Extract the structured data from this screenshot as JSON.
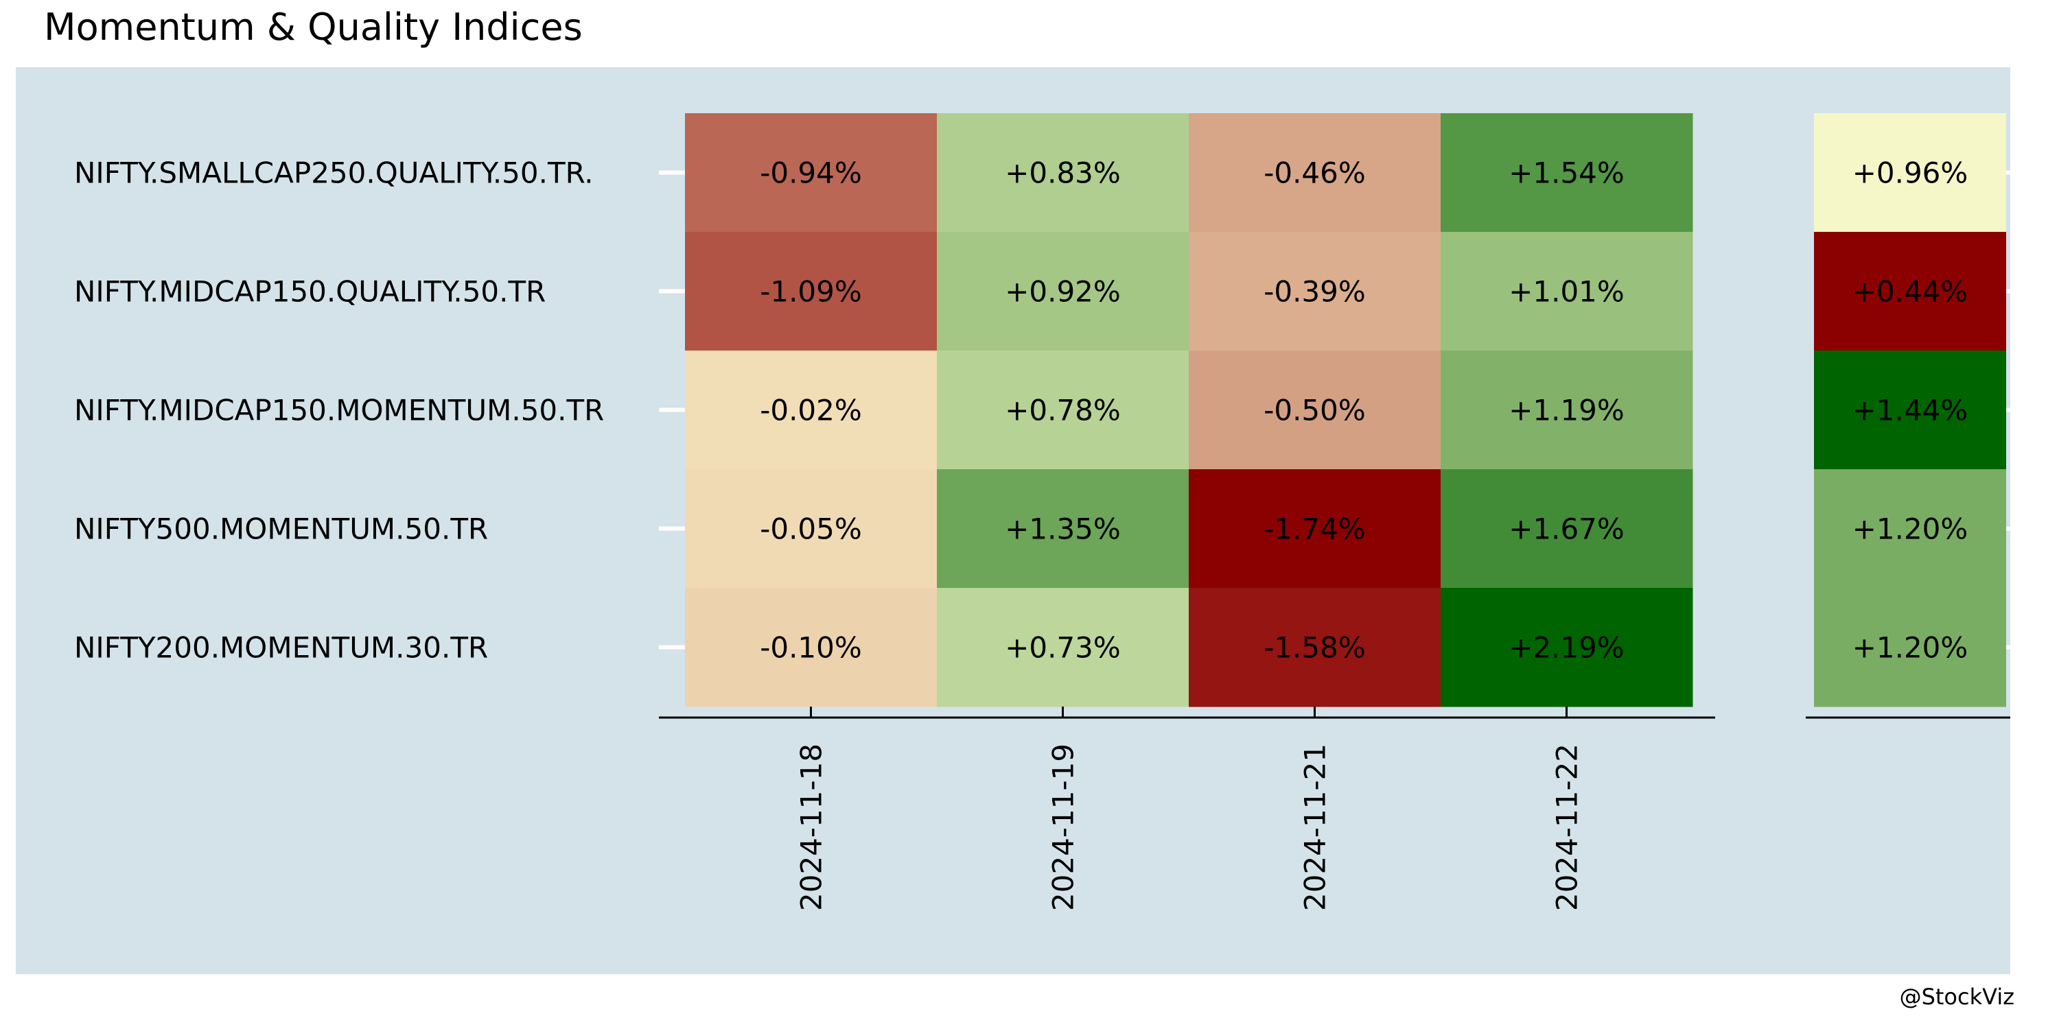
{
  "title": "Momentum & Quality Indices",
  "credit": "@StockViz",
  "colors": {
    "panel_background": "#d4e3ea",
    "negative_strong": "#8b0000",
    "neutral": "#fffdd0",
    "positive_strong": "#006400",
    "axis": "#000000",
    "tick_mark_row": "#ffffff"
  },
  "chart_data": [
    {
      "type": "heatmap",
      "name_role": "main",
      "rows": [
        "NIFTY.SMALLCAP250.QUALITY.50.TR.",
        "NIFTY.MIDCAP150.QUALITY.50.TR",
        "NIFTY.MIDCAP150.MOMENTUM.50.TR",
        "NIFTY500.MOMENTUM.50.TR",
        "NIFTY200.MOMENTUM.30.TR"
      ],
      "columns": [
        "2024-11-18",
        "2024-11-19",
        "2024-11-21",
        "2024-11-22"
      ],
      "values": [
        [
          -0.94,
          0.83,
          -0.46,
          1.54
        ],
        [
          -1.09,
          0.92,
          -0.39,
          1.01
        ],
        [
          -0.02,
          0.78,
          -0.5,
          1.19
        ],
        [
          -0.05,
          1.35,
          -1.74,
          1.67
        ],
        [
          -0.1,
          0.73,
          -1.58,
          2.19
        ]
      ],
      "labels": [
        [
          "-0.94%",
          "+0.83%",
          "-0.46%",
          "+1.54%"
        ],
        [
          "-1.09%",
          "+0.92%",
          "-0.39%",
          "+1.01%"
        ],
        [
          "-0.02%",
          "+0.78%",
          "-0.50%",
          "+1.19%"
        ],
        [
          "-0.05%",
          "+1.35%",
          "-1.74%",
          "+1.67%"
        ],
        [
          "-0.10%",
          "+0.73%",
          "-1.58%",
          "+2.19%"
        ]
      ],
      "scale": {
        "min": -1.74,
        "max": 2.19
      }
    },
    {
      "type": "heatmap",
      "name_role": "side",
      "rows": [
        "NIFTY.SMALLCAP250.QUALITY.50.TR.",
        "NIFTY.MIDCAP150.QUALITY.50.TR",
        "NIFTY.MIDCAP150.MOMENTUM.50.TR",
        "NIFTY500.MOMENTUM.50.TR",
        "NIFTY200.MOMENTUM.30.TR"
      ],
      "values": [
        0.96,
        0.44,
        1.44,
        1.2,
        1.2
      ],
      "labels": [
        "+0.96%",
        "+0.44%",
        "+1.44%",
        "+1.20%",
        "+1.20%"
      ],
      "scale": {
        "min": 0.44,
        "max": 1.44
      }
    }
  ]
}
